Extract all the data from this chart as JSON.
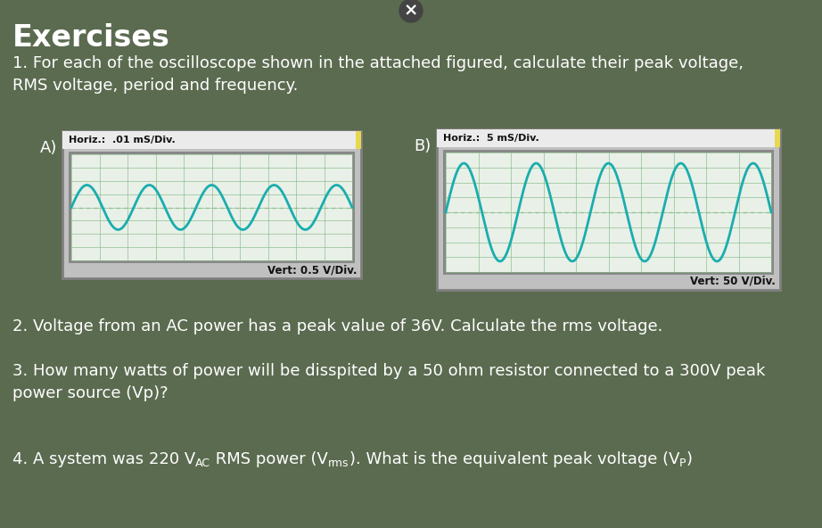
{
  "background_color": "#5b6b50",
  "title": "Exercises",
  "title_color": "#ffffff",
  "title_fontsize": 24,
  "q1_text": "1. For each of the oscilloscope shown in the attached figured, calculate their peak voltage,\nRMS voltage, period and frequency.",
  "q2_text": "2. Voltage from an AC power has a peak value of 36V. Calculate the rms voltage.",
  "q3_text": "3. How many watts of power will be disspited by a 50 ohm resistor connected to a 300V peak\npower source (Vp)?",
  "text_color": "#ffffff",
  "text_fontsize": 13,
  "label_A": "A)",
  "label_B": "B)",
  "horiz_A": "Horiz.:  .01 mS/Div.",
  "vert_A": "Vert: 0.5 V/Div.",
  "horiz_B": "Horiz.:  5 mS/Div.",
  "vert_B": "Vert: 50 V/Div.",
  "osc_bg": "#e8f0e8",
  "osc_grid_color": "#88bb88",
  "osc_wave_color": "#1aadad",
  "osc_border_outer": "#999999",
  "osc_border_inner": "#aaaaaa",
  "osc_header_bg": "#eeeeee",
  "osc_footer_bg": "#f5f5f5",
  "osc_outer_bg": "#bbbbbb",
  "close_btn_bg": "#444444",
  "wave_A_freq": 4.5,
  "wave_A_amp": 0.42,
  "wave_B_freq": 4.5,
  "wave_B_amp": 0.82,
  "q4_part1": "4. A system was 220 V",
  "q4_sub1": "AC",
  "q4_part2": " RMS power (V",
  "q4_sub2": "rms",
  "q4_part3": "). What is the equivalent peak voltage (V",
  "q4_sub3": "P",
  "q4_part4": ")"
}
